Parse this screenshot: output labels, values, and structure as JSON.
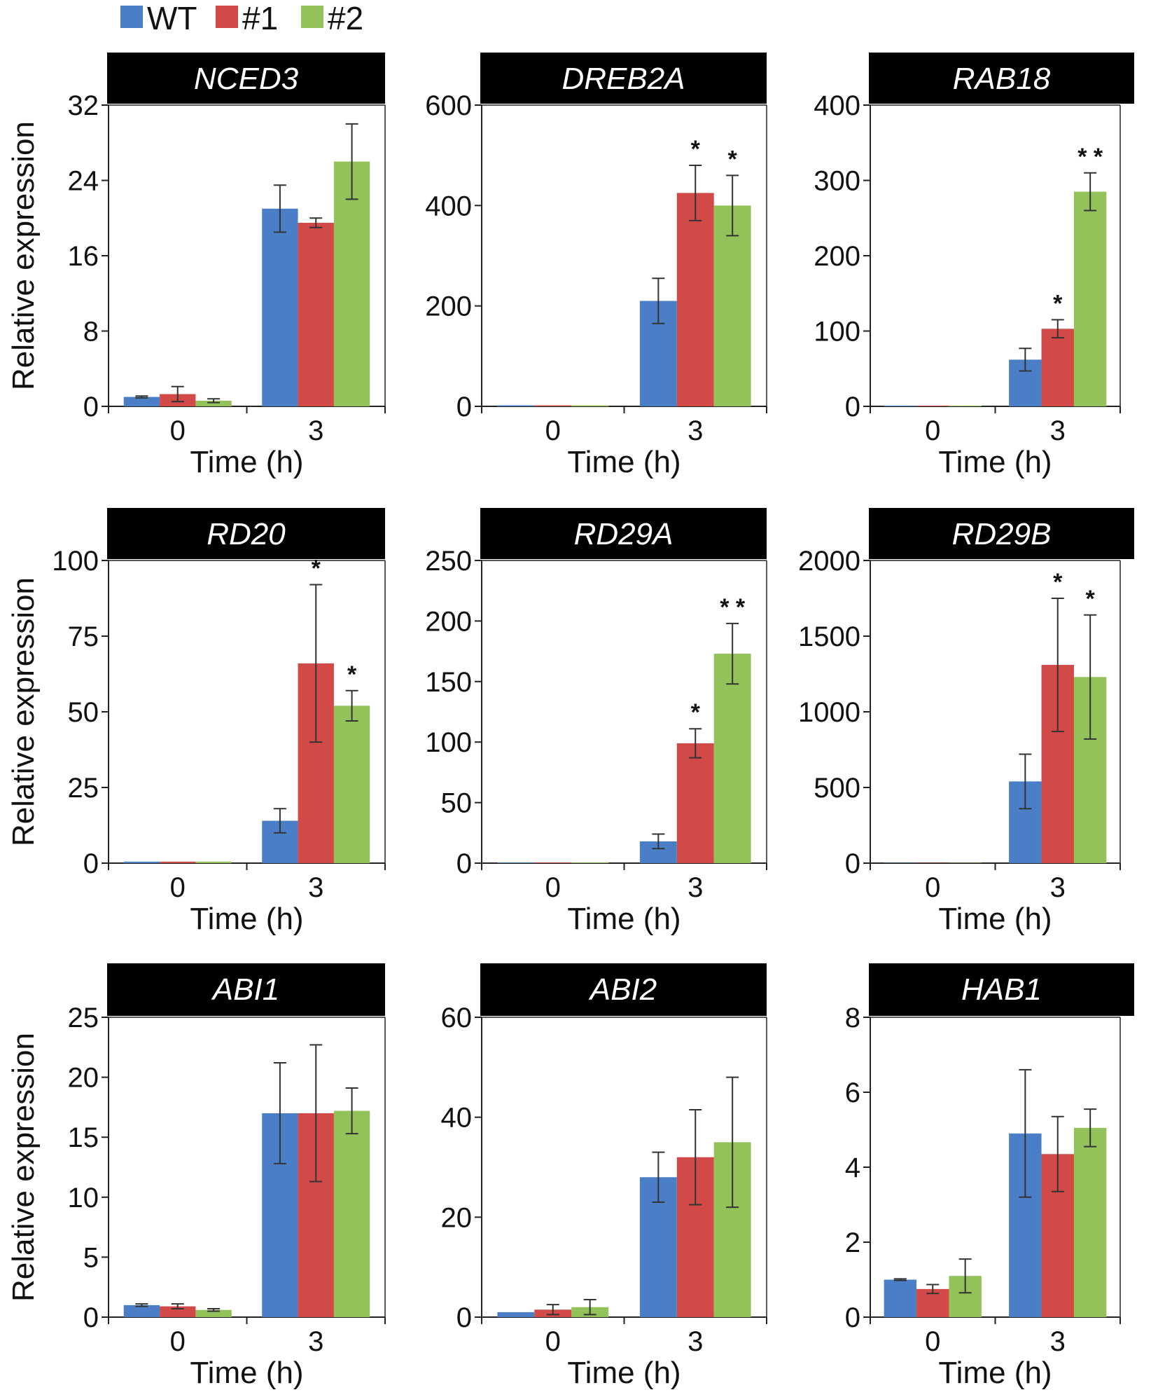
{
  "legend": {
    "items": [
      {
        "label": "WT",
        "color": "#4a7fc8"
      },
      {
        "label": "#1",
        "color": "#d24a47"
      },
      {
        "label": "#2",
        "color": "#93c25a"
      }
    ]
  },
  "chart_data": [
    {
      "type": "bar",
      "title": "NCED3",
      "categories": [
        "0",
        "3"
      ],
      "xlabel": "Time (h)",
      "ylabel": "Relative  expression",
      "ylim": [
        0,
        32
      ],
      "yticks": [
        0,
        8,
        16,
        24,
        32
      ],
      "series": [
        {
          "name": "WT",
          "values": [
            1.0,
            21.0
          ],
          "errors": [
            0.1,
            2.5
          ]
        },
        {
          "name": "#1",
          "values": [
            1.3,
            19.5
          ],
          "errors": [
            0.8,
            0.5
          ]
        },
        {
          "name": "#2",
          "values": [
            0.6,
            26.0
          ],
          "errors": [
            0.2,
            4.0
          ]
        }
      ],
      "significance": [
        [
          "",
          ""
        ],
        [
          "",
          ""
        ],
        [
          "",
          ""
        ]
      ]
    },
    {
      "type": "bar",
      "title": "DREB2A",
      "categories": [
        "0",
        "3"
      ],
      "xlabel": "Time (h)",
      "ylabel": "",
      "ylim": [
        0,
        600
      ],
      "yticks": [
        0,
        200,
        400,
        600
      ],
      "series": [
        {
          "name": "WT",
          "values": [
            2,
            210
          ],
          "errors": [
            0.5,
            45
          ]
        },
        {
          "name": "#1",
          "values": [
            2,
            425
          ],
          "errors": [
            0.5,
            55
          ]
        },
        {
          "name": "#2",
          "values": [
            2,
            400
          ],
          "errors": [
            0.5,
            60
          ]
        }
      ],
      "significance": [
        [
          "",
          ""
        ],
        [
          "",
          "*"
        ],
        [
          "",
          "*"
        ]
      ]
    },
    {
      "type": "bar",
      "title": "RAB18",
      "categories": [
        "0",
        "3"
      ],
      "xlabel": "Time (h)",
      "ylabel": "",
      "ylim": [
        0,
        400
      ],
      "yticks": [
        0,
        100,
        200,
        300,
        400
      ],
      "series": [
        {
          "name": "WT",
          "values": [
            1,
            62
          ],
          "errors": [
            0.3,
            15
          ]
        },
        {
          "name": "#1",
          "values": [
            1,
            103
          ],
          "errors": [
            0.3,
            12
          ]
        },
        {
          "name": "#2",
          "values": [
            1,
            285
          ],
          "errors": [
            0.3,
            25
          ]
        }
      ],
      "significance": [
        [
          "",
          ""
        ],
        [
          "",
          "*"
        ],
        [
          "",
          "**"
        ]
      ]
    },
    {
      "type": "bar",
      "title": "RD20",
      "categories": [
        "0",
        "3"
      ],
      "xlabel": "Time (h)",
      "ylabel": "Relative  expression",
      "ylim": [
        0,
        100
      ],
      "yticks": [
        0,
        25,
        50,
        75,
        100
      ],
      "series": [
        {
          "name": "WT",
          "values": [
            0.5,
            14
          ],
          "errors": [
            0.1,
            4
          ]
        },
        {
          "name": "#1",
          "values": [
            0.5,
            66
          ],
          "errors": [
            0.1,
            26
          ]
        },
        {
          "name": "#2",
          "values": [
            0.5,
            52
          ],
          "errors": [
            0.1,
            5
          ]
        }
      ],
      "significance": [
        [
          "",
          ""
        ],
        [
          "",
          "*"
        ],
        [
          "",
          "*"
        ]
      ]
    },
    {
      "type": "bar",
      "title": "RD29A",
      "categories": [
        "0",
        "3"
      ],
      "xlabel": "Time (h)",
      "ylabel": "",
      "ylim": [
        0,
        250
      ],
      "yticks": [
        0,
        50,
        100,
        150,
        200,
        250
      ],
      "series": [
        {
          "name": "WT",
          "values": [
            0.5,
            18
          ],
          "errors": [
            0.1,
            6
          ]
        },
        {
          "name": "#1",
          "values": [
            0.5,
            99
          ],
          "errors": [
            0.1,
            12
          ]
        },
        {
          "name": "#2",
          "values": [
            0.5,
            173
          ],
          "errors": [
            0.1,
            25
          ]
        }
      ],
      "significance": [
        [
          "",
          ""
        ],
        [
          "",
          "*"
        ],
        [
          "",
          "**"
        ]
      ]
    },
    {
      "type": "bar",
      "title": "RD29B",
      "categories": [
        "0",
        "3"
      ],
      "xlabel": "Time (h)",
      "ylabel": "",
      "ylim": [
        0,
        2000
      ],
      "yticks": [
        0,
        500,
        1000,
        1500,
        2000
      ],
      "series": [
        {
          "name": "WT",
          "values": [
            2,
            540
          ],
          "errors": [
            0.5,
            180
          ]
        },
        {
          "name": "#1",
          "values": [
            2,
            1310
          ],
          "errors": [
            0.5,
            440
          ]
        },
        {
          "name": "#2",
          "values": [
            2,
            1230
          ],
          "errors": [
            0.5,
            410
          ]
        }
      ],
      "significance": [
        [
          "",
          ""
        ],
        [
          "",
          "*"
        ],
        [
          "",
          "*"
        ]
      ]
    },
    {
      "type": "bar",
      "title": "ABI1",
      "categories": [
        "0",
        "3"
      ],
      "xlabel": "Time (h)",
      "ylabel": "Relative  expression",
      "ylim": [
        0,
        25
      ],
      "yticks": [
        0,
        5,
        10,
        15,
        20,
        25
      ],
      "series": [
        {
          "name": "WT",
          "values": [
            1.0,
            17.0
          ],
          "errors": [
            0.1,
            4.2
          ]
        },
        {
          "name": "#1",
          "values": [
            0.9,
            17.0
          ],
          "errors": [
            0.2,
            5.7
          ]
        },
        {
          "name": "#2",
          "values": [
            0.6,
            17.2
          ],
          "errors": [
            0.1,
            1.9
          ]
        }
      ],
      "significance": [
        [
          "",
          ""
        ],
        [
          "",
          ""
        ],
        [
          "",
          ""
        ]
      ]
    },
    {
      "type": "bar",
      "title": "ABI2",
      "categories": [
        "0",
        "3"
      ],
      "xlabel": "Time (h)",
      "ylabel": "",
      "ylim": [
        0,
        60
      ],
      "yticks": [
        0,
        20,
        40,
        60
      ],
      "series": [
        {
          "name": "WT",
          "values": [
            1.0,
            28
          ],
          "errors": [
            0.1,
            5
          ]
        },
        {
          "name": "#1",
          "values": [
            1.5,
            32
          ],
          "errors": [
            1.0,
            9.5
          ]
        },
        {
          "name": "#2",
          "values": [
            2.0,
            35
          ],
          "errors": [
            1.5,
            13
          ]
        }
      ],
      "significance": [
        [
          "",
          ""
        ],
        [
          "",
          ""
        ],
        [
          "",
          ""
        ]
      ]
    },
    {
      "type": "bar",
      "title": "HAB1",
      "categories": [
        "0",
        "3"
      ],
      "xlabel": "Time (h)",
      "ylabel": "",
      "ylim": [
        0,
        8
      ],
      "yticks": [
        0,
        2,
        4,
        6,
        8
      ],
      "series": [
        {
          "name": "WT",
          "values": [
            1.0,
            4.9
          ],
          "errors": [
            0.02,
            1.7
          ]
        },
        {
          "name": "#1",
          "values": [
            0.75,
            4.35
          ],
          "errors": [
            0.12,
            1.0
          ]
        },
        {
          "name": "#2",
          "values": [
            1.1,
            5.05
          ],
          "errors": [
            0.45,
            0.5
          ]
        }
      ],
      "significance": [
        [
          "",
          ""
        ],
        [
          "",
          ""
        ],
        [
          "",
          ""
        ]
      ]
    }
  ]
}
